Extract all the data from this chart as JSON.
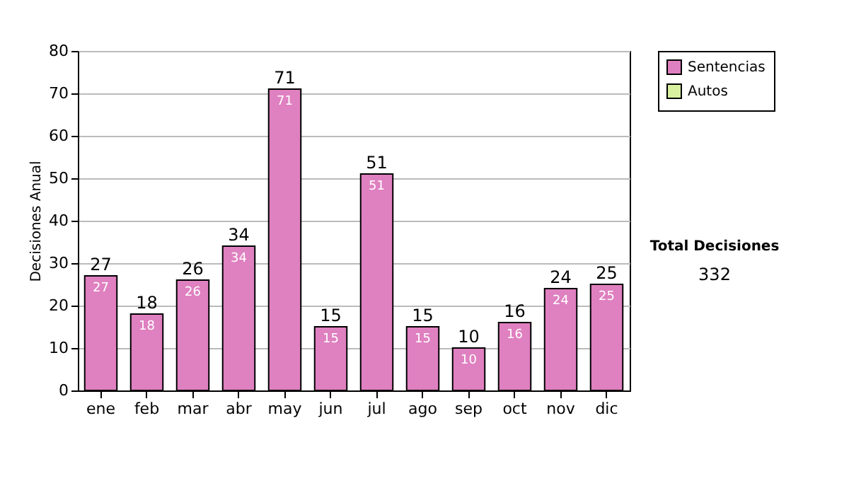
{
  "chart_data": {
    "type": "bar",
    "ylabel": "Decisiones Anual",
    "categories": [
      "ene",
      "feb",
      "mar",
      "abr",
      "may",
      "jun",
      "jul",
      "ago",
      "sep",
      "oct",
      "nov",
      "dic"
    ],
    "series": [
      {
        "name": "Sentencias",
        "color": "#df80c0",
        "values": [
          27,
          18,
          26,
          34,
          71,
          15,
          51,
          15,
          10,
          16,
          24,
          25
        ],
        "value_labels": [
          "27",
          "18",
          "26",
          "34",
          "71",
          "15",
          "51",
          "15",
          "10",
          "16",
          "24",
          "25"
        ]
      },
      {
        "name": "Autos",
        "color": "#d8f0a0",
        "values": [
          null,
          null,
          null,
          null,
          null,
          null,
          null,
          null,
          null,
          null,
          null,
          null
        ]
      }
    ],
    "totals": [
      "27",
      "18",
      "26",
      "34",
      "71",
      "15",
      "51",
      "15",
      "10",
      "16",
      "24",
      "25"
    ],
    "ylim": [
      0,
      80
    ],
    "yticks": [
      0,
      10,
      20,
      30,
      40,
      50,
      60,
      70,
      80
    ],
    "grid": "y",
    "legend": "right",
    "annotations": [
      "Total Decisiones",
      "332"
    ]
  }
}
